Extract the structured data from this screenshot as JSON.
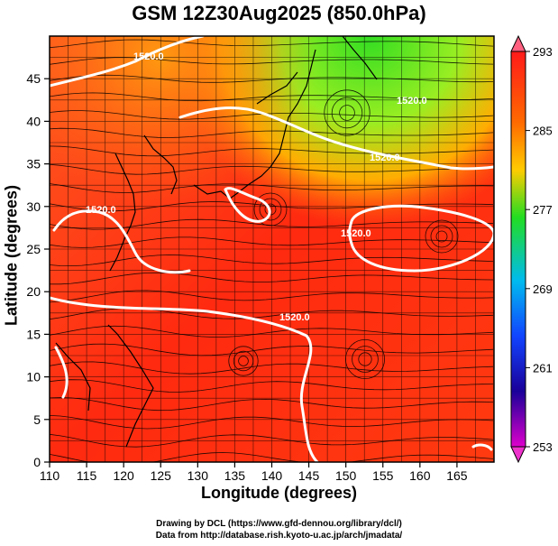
{
  "title": "GSM 12Z30Aug2025 (850.0hPa)",
  "xlabel": "Longitude (degrees)",
  "ylabel": "Latitude  (degrees)",
  "credits": {
    "line1": "Drawing by DCL (https://www.gfd-dennou.org/library/dcl/)",
    "line2": "Data from http://database.rish.kyoto-u.ac.jp/arch/jmadata/"
  },
  "map": {
    "lon_range": [
      110,
      170
    ],
    "lat_range": [
      0,
      50
    ],
    "lon_ticks": [
      "110",
      "115",
      "120",
      "125",
      "130",
      "135",
      "140",
      "145",
      "150",
      "155",
      "160",
      "165"
    ],
    "lat_ticks": [
      "0",
      "5",
      "10",
      "15",
      "20",
      "25",
      "30",
      "35",
      "40",
      "45"
    ],
    "grid": true,
    "contour_labels": [
      "1520.0",
      "1520.0",
      "1520.0",
      "1520.0",
      "1520.0",
      "1520.0"
    ],
    "legend": {
      "position": "right",
      "ticks": [
        "293",
        "285",
        "277",
        "269",
        "261",
        "253"
      ],
      "colors": [
        "#ff1a1a",
        "#ff6a00",
        "#ffcc00",
        "#22dd22",
        "#00bbee",
        "#1144ff",
        "#1a0099",
        "#dd00cc"
      ]
    }
  }
}
